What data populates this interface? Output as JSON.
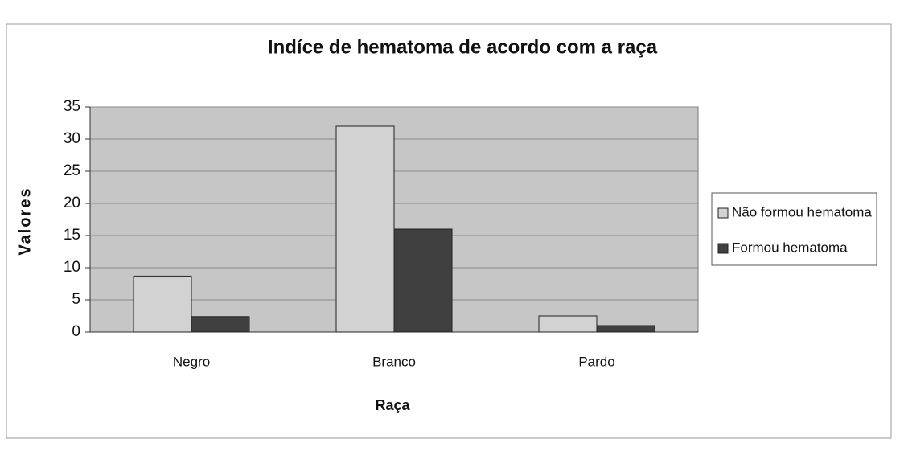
{
  "chart_data": {
    "type": "bar",
    "title": "Indíce de hematoma de acordo com a raça",
    "x_label": "Raça",
    "y_label": "Valores",
    "categories": [
      "Negro",
      "Branco",
      "Pardo"
    ],
    "series": [
      {
        "name": "Não formou hematoma",
        "color": "#d2d2d2",
        "values": [
          8.7,
          32,
          2.5
        ]
      },
      {
        "name": "Formou hematoma",
        "color": "#404040",
        "values": [
          2.4,
          16,
          1
        ]
      }
    ],
    "ylim": [
      0,
      35
    ],
    "yticks": [
      0,
      5,
      10,
      15,
      20,
      25,
      30,
      35
    ],
    "grid": true,
    "legend": "right"
  }
}
